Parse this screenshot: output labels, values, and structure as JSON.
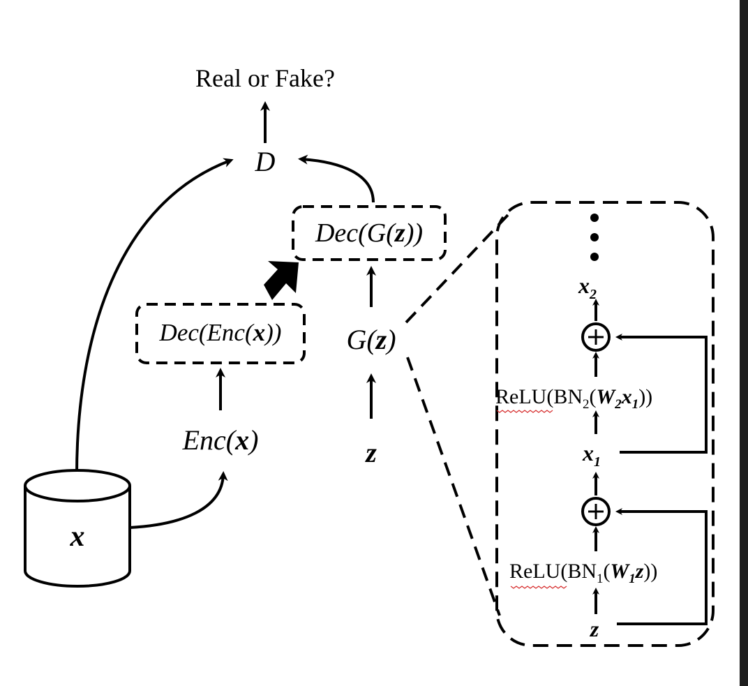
{
  "diagram": {
    "output_label": "Real or Fake?",
    "discriminator": "D",
    "data_node": {
      "symbol": "x"
    },
    "encoder_node": {
      "prefix": "Enc(",
      "var": "x",
      "suffix": ")"
    },
    "recon_real": {
      "prefix": "Dec(Enc(",
      "var": "x",
      "suffix": "))"
    },
    "recon_fake": {
      "prefix": "Dec(G(",
      "var": "z",
      "suffix": "))"
    },
    "generator_node": {
      "prefix": "G(",
      "var": "z",
      "suffix": ")"
    },
    "noise_node": {
      "symbol": "z"
    },
    "block": {
      "ellipsis": "⋮",
      "x2": {
        "base": "x",
        "sub": "2"
      },
      "x1": {
        "base": "x",
        "sub": "1"
      },
      "z": "z",
      "layer2": {
        "relu": "ReLU",
        "bn": "(BN",
        "sub_bn": "2",
        "open": "(",
        "w": "W",
        "sub_w": "2",
        "x": "x",
        "sub_x": "1",
        "close": "))"
      },
      "layer1": {
        "relu": "ReLU",
        "bn": "(BN",
        "sub_bn": "1",
        "open": "(",
        "w": "W",
        "sub_w": "1",
        "z": "z",
        "close": "))"
      },
      "sum_symbol": "+"
    }
  }
}
